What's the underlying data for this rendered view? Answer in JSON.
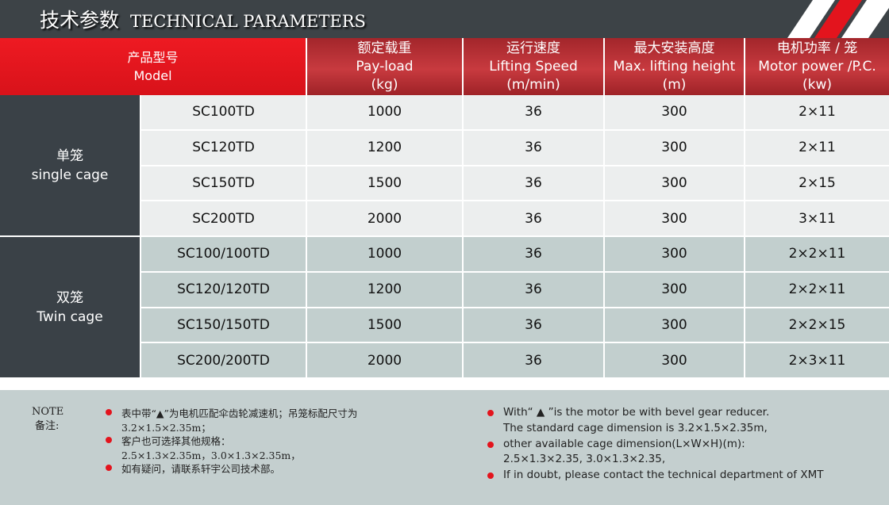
{
  "header": {
    "title_cn": "技术参数",
    "title_en": "TECHNICAL PARAMETERS"
  },
  "table": {
    "columns": [
      {
        "cn": "产品型号",
        "en": "Model"
      },
      {
        "cn": "额定载重",
        "en": "Pay-load",
        "unit": "(kg)"
      },
      {
        "cn": "运行速度",
        "en": "Lifting Speed",
        "unit": "(m/min)"
      },
      {
        "cn": "最大安装高度",
        "en": "Max. lifting height",
        "unit": "(m)"
      },
      {
        "cn": "电机功率 / 笼",
        "en": "Motor power /P.C.",
        "unit": "(kw)"
      }
    ],
    "groups": [
      {
        "cn": "单笼",
        "en": "single cage",
        "rows": [
          [
            "SC100TD",
            1000,
            36,
            300,
            "2×11"
          ],
          [
            "SC120TD",
            1200,
            36,
            300,
            "2×11"
          ],
          [
            "SC150TD",
            1500,
            36,
            300,
            "2×15"
          ],
          [
            "SC200TD",
            2000,
            36,
            300,
            "3×11"
          ]
        ]
      },
      {
        "cn": "双笼",
        "en": "Twin cage",
        "rows": [
          [
            "SC100/100TD",
            1000,
            36,
            300,
            "2×2×11"
          ],
          [
            "SC120/120TD",
            1200,
            36,
            300,
            "2×2×11"
          ],
          [
            "SC150/150TD",
            1500,
            36,
            300,
            "2×2×15"
          ],
          [
            "SC200/200TD",
            2000,
            36,
            300,
            "2×3×11"
          ]
        ]
      }
    ]
  },
  "notes": {
    "label_en": "NOTE",
    "label_cn": "备注:",
    "cn": [
      [
        "表中带“▲”为电机匹配伞齿轮减速机；吊笼标配尺寸为",
        "3.2×1.5×2.35m；"
      ],
      [
        "客户也可选择其他规格：",
        "2.5×1.3×2.35m，3.0×1.3×2.35m，"
      ],
      [
        "如有疑问，请联系轩宇公司技术部。"
      ]
    ],
    "en": [
      [
        "With“ ▲ ”is the motor be with bevel gear reducer.",
        "The standard cage dimension is 3.2×1.5×2.35m,"
      ],
      [
        "other available cage dimension(L×W×H)(m):",
        "2.5×1.3×2.35, 3.0×1.3×2.35,"
      ],
      [
        "If in doubt, please contact the technical department of XMT"
      ]
    ]
  }
}
